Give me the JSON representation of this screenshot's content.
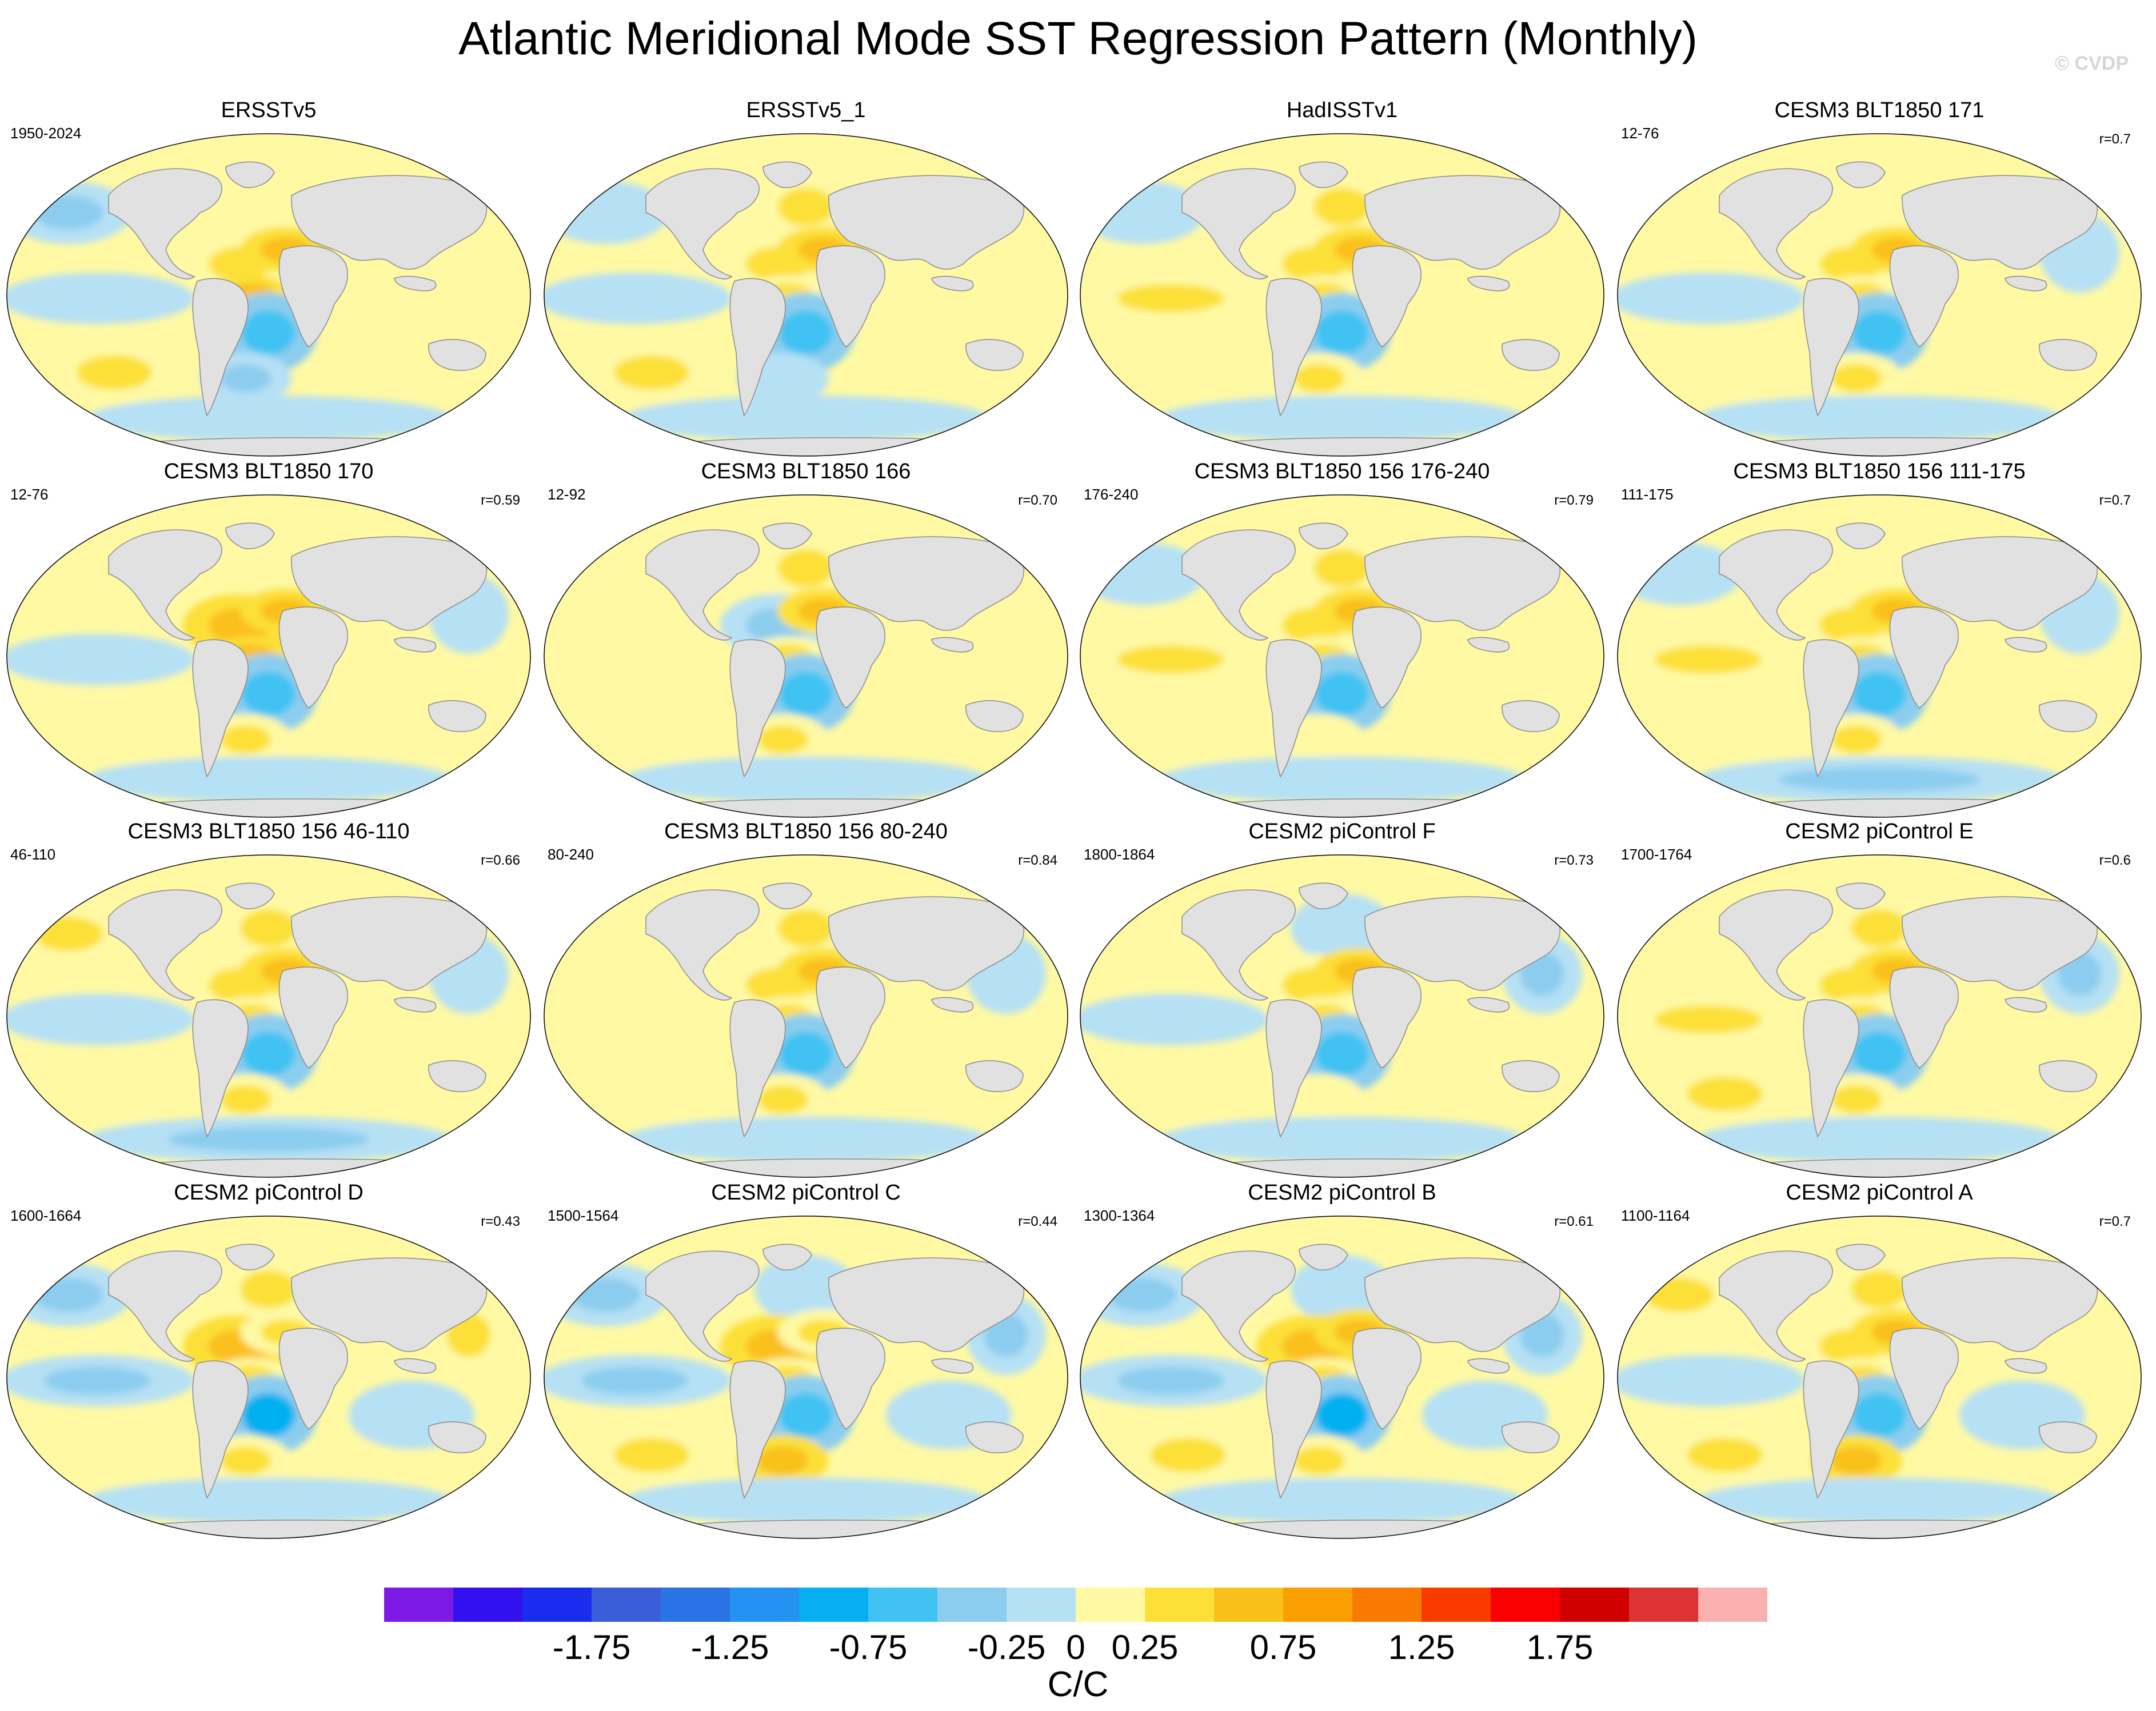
{
  "title": "Atlantic Meridional Mode SST Regression Pattern (Monthly)",
  "watermark": "© CVDP",
  "colors": {
    "land": "#e1e1e1",
    "land_edge": "#8a8a8a",
    "levels": [
      "#7d1ae6",
      "#3310f0",
      "#1a2cee",
      "#3a5ed8",
      "#2a73e6",
      "#2392f0",
      "#06b0f0",
      "#40c2f2",
      "#8ccdef",
      "#b6e0f4",
      "#fff9a4",
      "#fce038",
      "#fac01a",
      "#f99f02",
      "#f97a00",
      "#fa3b00",
      "#fb0000",
      "#d00000",
      "#dc3434",
      "#fbb0b0"
    ]
  },
  "panels": [
    {
      "name": "ERSSTv5",
      "period": "1950-2024",
      "corr": "",
      "v": [
        -0.3,
        0.2,
        0.3,
        -0.2,
        0.6,
        0.5,
        -0.6,
        -0.4,
        0.3,
        0.2,
        0.1,
        -0.1
      ]
    },
    {
      "name": "ERSSTv5_1",
      "period": "",
      "corr": "",
      "v": [
        -0.2,
        0.3,
        0.4,
        -0.1,
        0.5,
        0.4,
        -0.7,
        -0.2,
        0.3,
        0.2,
        0.2,
        -0.1
      ]
    },
    {
      "name": "HadISSTv1",
      "period": "",
      "corr": "",
      "v": [
        -0.2,
        0.3,
        0.4,
        0.3,
        0.6,
        0.4,
        -0.6,
        0.3,
        0.1,
        0.2,
        0.2,
        -0.2
      ]
    },
    {
      "name": "CESM3 BLT1850 171",
      "period": "12-76",
      "corr": "r=0.7",
      "v": [
        0.1,
        0.2,
        0.3,
        -0.2,
        0.6,
        0.4,
        -0.7,
        0.4,
        0.2,
        0.1,
        -0.2,
        -0.1
      ]
    },
    {
      "name": "CESM3 BLT1850 170",
      "period": "12-76",
      "corr": "r=0.59",
      "v": [
        0.1,
        0.2,
        0.7,
        -0.2,
        0.6,
        0.5,
        -0.7,
        0.3,
        0.1,
        0.2,
        -0.1,
        -0.2
      ]
    },
    {
      "name": "CESM3 BLT1850 166",
      "period": "12-92",
      "corr": "r=0.70",
      "v": [
        0.1,
        0.3,
        -0.3,
        0.1,
        0.6,
        0.3,
        -0.6,
        0.3,
        0.2,
        0.1,
        0.1,
        -0.1
      ]
    },
    {
      "name": "CESM3 BLT1850 156 176-240",
      "period": "176-240",
      "corr": "r=0.79",
      "v": [
        -0.2,
        0.3,
        0.4,
        0.4,
        0.5,
        0.4,
        -0.7,
        0.2,
        0.1,
        0.2,
        0.1,
        -0.2
      ]
    },
    {
      "name": "CESM3 BLT1850 156 111-175",
      "period": "111-175",
      "corr": "r=0.7",
      "v": [
        -0.1,
        0.2,
        0.3,
        0.4,
        0.5,
        0.4,
        -0.6,
        0.3,
        0.1,
        0.2,
        -0.2,
        -0.3
      ]
    },
    {
      "name": "CESM3 BLT1850 156 46-110",
      "period": "46-110",
      "corr": "r=0.66",
      "v": [
        0.3,
        0.4,
        0.4,
        -0.2,
        0.5,
        0.3,
        -0.6,
        0.4,
        0.2,
        0.1,
        -0.2,
        -0.3
      ]
    },
    {
      "name": "CESM3 BLT1850 156 80-240",
      "period": "80-240",
      "corr": "r=0.84",
      "v": [
        0.2,
        0.3,
        0.4,
        0.2,
        0.5,
        0.4,
        -0.6,
        0.3,
        0.2,
        0.1,
        -0.1,
        -0.2
      ]
    },
    {
      "name": "CESM2 piControl F",
      "period": "1800-1864",
      "corr": "r=0.73",
      "v": [
        0.2,
        -0.2,
        0.4,
        -0.2,
        0.6,
        0.4,
        -0.7,
        0.2,
        0.2,
        0.1,
        -0.3,
        -0.2
      ]
    },
    {
      "name": "CESM2 piControl E",
      "period": "1700-1764",
      "corr": "r=0.6",
      "v": [
        0.2,
        0.3,
        0.4,
        0.4,
        0.5,
        0.4,
        -0.7,
        0.4,
        0.3,
        0.2,
        -0.3,
        -0.2
      ]
    },
    {
      "name": "CESM2 piControl D",
      "period": "1600-1664",
      "corr": "r=0.43",
      "v": [
        -0.3,
        0.3,
        0.5,
        -0.4,
        0.4,
        0.3,
        -0.8,
        0.3,
        0.2,
        -0.1,
        0.3,
        -0.2
      ]
    },
    {
      "name": "CESM2 piControl C",
      "period": "1500-1564",
      "corr": "r=0.44",
      "v": [
        -0.3,
        -0.2,
        0.5,
        -0.4,
        0.4,
        0.3,
        -0.7,
        0.6,
        0.4,
        -0.2,
        -0.3,
        -0.2
      ]
    },
    {
      "name": "CESM2 piControl B",
      "period": "1300-1364",
      "corr": "r=0.61",
      "v": [
        -0.4,
        -0.2,
        0.5,
        -0.3,
        0.6,
        0.4,
        -0.8,
        0.4,
        0.3,
        -0.1,
        -0.3,
        -0.2
      ]
    },
    {
      "name": "CESM2 piControl A",
      "period": "1100-1164",
      "corr": "r=0.7",
      "v": [
        0.3,
        0.3,
        0.4,
        -0.2,
        0.5,
        0.3,
        -0.7,
        0.6,
        0.3,
        -0.2,
        0.2,
        -0.2
      ]
    }
  ],
  "colorbar": {
    "ticks": [
      "-1.75",
      "-1.25",
      "-0.75",
      "-0.25",
      "0",
      "0.25",
      "0.75",
      "1.25",
      "1.75"
    ],
    "units": "C/C"
  }
}
